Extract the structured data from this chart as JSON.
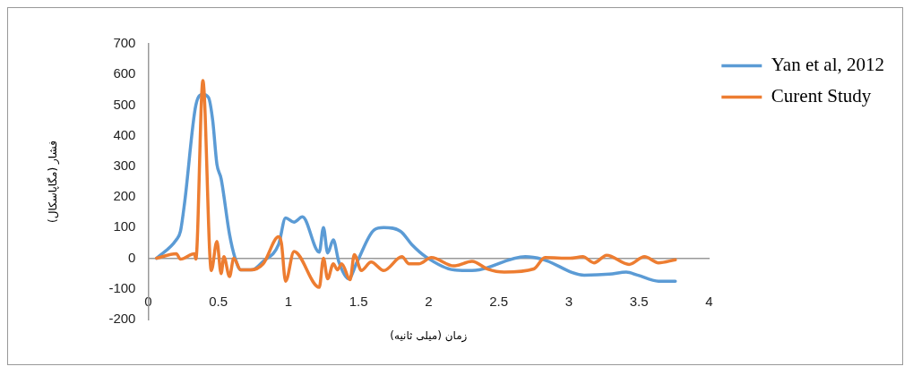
{
  "chart_data": {
    "type": "line",
    "xlabel": "زمان (میلی ثانیه)",
    "ylabel": "فشار (مگاپاسکال)",
    "xlim": [
      0,
      4
    ],
    "xticks": [
      0,
      0.5,
      1,
      1.5,
      2,
      2.5,
      3,
      3.5,
      4
    ],
    "ylim": [
      -200,
      700
    ],
    "yticks": [
      -200,
      -100,
      0,
      100,
      200,
      300,
      400,
      500,
      600,
      700
    ],
    "grid": false,
    "legend": "right",
    "marker": "none",
    "line_style": "solid",
    "series": [
      {
        "name": "Yan et al, 2012",
        "color": "#5b9bd5",
        "x": [
          0.06,
          0.2,
          0.23,
          0.26,
          0.34,
          0.39,
          0.43,
          0.46,
          0.49,
          0.52,
          0.58,
          0.62,
          0.66,
          0.74,
          0.82,
          0.93,
          0.98,
          1.04,
          1.1,
          1.22,
          1.25,
          1.28,
          1.32,
          1.36,
          1.43,
          1.49,
          1.61,
          1.68,
          1.8,
          1.88,
          1.98,
          2.18,
          2.31,
          2.36,
          2.69,
          2.81,
          3.11,
          3.29,
          3.41,
          3.49,
          3.64,
          3.76
        ],
        "values": [
          0,
          60,
          88,
          183,
          500,
          535,
          525,
          450,
          307,
          260,
          78,
          0,
          -38,
          -38,
          -10,
          45,
          132,
          118,
          135,
          20,
          100,
          17,
          60,
          -12,
          -67,
          -12,
          92,
          100,
          88,
          45,
          5,
          -38,
          -40,
          -38,
          5,
          -3,
          -55,
          -52,
          -45,
          -55,
          -75,
          -75
        ]
      },
      {
        "name": "Curent Study",
        "color": "#ed7d31",
        "x": [
          0.06,
          0.2,
          0.23,
          0.33,
          0.34,
          0.39,
          0.45,
          0.49,
          0.52,
          0.54,
          0.58,
          0.61,
          0.66,
          0.73,
          0.82,
          0.93,
          0.95,
          0.98,
          1.04,
          1.22,
          1.25,
          1.28,
          1.32,
          1.35,
          1.38,
          1.44,
          1.47,
          1.52,
          1.59,
          1.68,
          1.81,
          1.86,
          1.93,
          2.02,
          2.18,
          2.31,
          2.42,
          2.54,
          2.75,
          2.83,
          3.01,
          3.1,
          3.18,
          3.27,
          3.43,
          3.54,
          3.64,
          3.76
        ],
        "values": [
          0,
          15,
          -3,
          15,
          -3,
          580,
          -40,
          55,
          -50,
          5,
          -60,
          0,
          -38,
          -38,
          -18,
          70,
          50,
          -75,
          22,
          -95,
          0,
          -67,
          -18,
          -38,
          -18,
          -70,
          12,
          -40,
          -12,
          -40,
          5,
          -18,
          -18,
          2,
          -25,
          -10,
          -35,
          -45,
          -35,
          2,
          0,
          5,
          -15,
          10,
          -20,
          5,
          -15,
          -5
        ]
      }
    ]
  }
}
